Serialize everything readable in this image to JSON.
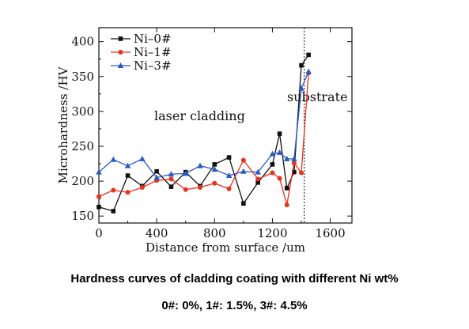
{
  "chart_data": {
    "type": "line",
    "xlabel": "Distance from surface /um",
    "ylabel": "Microhardness /HV",
    "xlim": [
      0,
      1750
    ],
    "ylim": [
      140,
      420
    ],
    "x_ticks": [
      0,
      400,
      800,
      1200,
      1600
    ],
    "y_ticks": [
      150,
      200,
      250,
      300,
      350,
      400
    ],
    "grid": false,
    "legend_position": "top-left",
    "annotations": [
      {
        "text": "laser cladding"
      },
      {
        "text": "substrate"
      }
    ],
    "vline_x": 1420,
    "series": [
      {
        "name": "Ni–0#",
        "color": "#111111",
        "marker": "square",
        "x": [
          0,
          100,
          200,
          300,
          400,
          500,
          600,
          700,
          800,
          900,
          1000,
          1100,
          1200,
          1250,
          1300,
          1350,
          1400,
          1450
        ],
        "y": [
          163,
          157,
          208,
          193,
          214,
          192,
          213,
          193,
          224,
          234,
          168,
          198,
          224,
          268,
          190,
          213,
          366,
          381
        ]
      },
      {
        "name": "Ni–1#",
        "color": "#e8321e",
        "marker": "circle",
        "x": [
          0,
          100,
          200,
          300,
          400,
          500,
          600,
          700,
          800,
          900,
          1000,
          1100,
          1200,
          1250,
          1300,
          1350,
          1400,
          1450
        ],
        "y": [
          178,
          187,
          184,
          191,
          201,
          203,
          188,
          191,
          197,
          189,
          230,
          203,
          212,
          204,
          166,
          226,
          212,
          355
        ]
      },
      {
        "name": "Ni–3#",
        "color": "#2a5bc4",
        "marker": "triangle",
        "x": [
          0,
          100,
          200,
          300,
          400,
          500,
          600,
          700,
          800,
          900,
          1000,
          1100,
          1200,
          1250,
          1300,
          1350,
          1400,
          1450
        ],
        "y": [
          213,
          231,
          222,
          232,
          205,
          210,
          211,
          222,
          217,
          208,
          214,
          213,
          239,
          241,
          232,
          232,
          333,
          357
        ]
      }
    ]
  },
  "caption": {
    "line1": "Hardness curves of cladding coating with different Ni wt%",
    "line2": "0#: 0%, 1#: 1.5%, 3#: 4.5%"
  }
}
